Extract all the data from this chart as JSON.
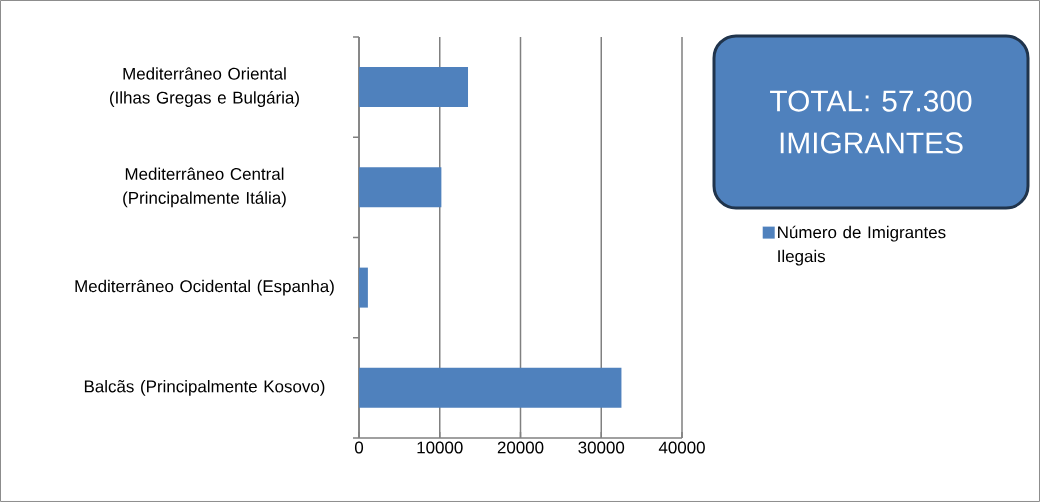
{
  "chart_data": {
    "type": "bar",
    "orientation": "horizontal",
    "categories": [
      "Mediterrâneo Oriental (Ilhas Gregas e Bulgária)",
      "Mediterrâneo Central (Principalmente Itália)",
      "Mediterrâneo Ocidental (Espanha)",
      "Balcãs (Principalmente Kosovo)"
    ],
    "series": [
      {
        "name": "Número de Imigrantes Ilegais",
        "color": "#4f81bd",
        "values": [
          13500,
          10200,
          1100,
          32500
        ]
      }
    ],
    "xlim": [
      0,
      40000
    ],
    "xticks": [
      0,
      10000,
      20000,
      30000,
      40000
    ],
    "grid": "x",
    "legend": "right",
    "annotations": [
      "TOTAL: 57.300 IMIGRANTES"
    ]
  }
}
